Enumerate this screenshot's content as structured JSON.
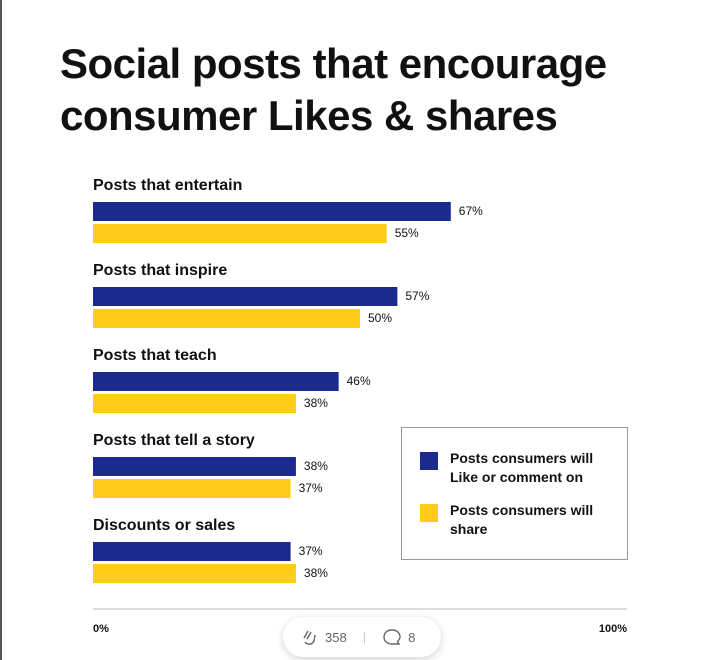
{
  "chart_data": {
    "type": "hbar",
    "title": "Social posts that encourage consumer Likes & shares",
    "categories": [
      "Posts that entertain",
      "Posts that inspire",
      "Posts that teach",
      "Posts that tell a story",
      "Discounts or sales"
    ],
    "series": [
      {
        "name": "Posts consumers will Like or comment on",
        "color": "#1b2a8c",
        "values": [
          67,
          57,
          46,
          38,
          37
        ],
        "value_labels": [
          "67%",
          "57%",
          "46%",
          "38%",
          "37%"
        ]
      },
      {
        "name": "Posts consumers will share",
        "color": "#ffcc1a",
        "values": [
          55,
          50,
          38,
          37,
          38
        ],
        "value_labels": [
          "55%",
          "50%",
          "38%",
          "37%",
          "38%"
        ]
      }
    ],
    "xlim": [
      0,
      100
    ],
    "xticks": [
      {
        "value": 0,
        "label": "0%"
      },
      {
        "value": 100,
        "label": "100%"
      }
    ],
    "legend": "lower right"
  },
  "footer": {
    "claps": 358,
    "comments": 8
  }
}
